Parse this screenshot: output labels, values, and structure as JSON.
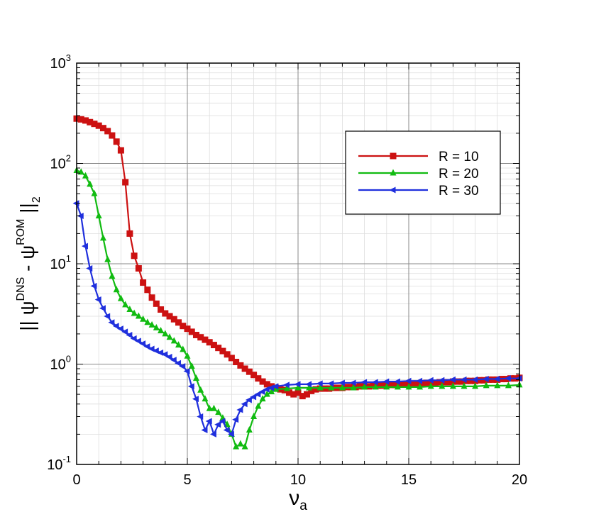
{
  "chart_data": {
    "type": "line",
    "xlabel": "ν",
    "xlabel_sub": "a",
    "ylabel_parts": {
      "open": "|| ψ",
      "sup1": "DNS",
      "mid": " - ψ",
      "sup2": "ROM",
      "close": " ||",
      "sub": "2"
    },
    "x_scale": "linear",
    "y_scale": "log",
    "xlim": [
      0,
      20
    ],
    "ylim": [
      0.1,
      1000
    ],
    "x_ticks": [
      "0",
      "5",
      "10",
      "15",
      "20"
    ],
    "y_ticks": [
      {
        "base": "10",
        "exp": "-1"
      },
      {
        "base": "10",
        "exp": "0"
      },
      {
        "base": "10",
        "exp": "1"
      },
      {
        "base": "10",
        "exp": "2"
      },
      {
        "base": "10",
        "exp": "3"
      }
    ],
    "grid": true,
    "legend_position": "upper-right",
    "series": [
      {
        "name": "R = 10",
        "color": "#cc1111",
        "marker": "square",
        "x": [
          0,
          0.2,
          0.4,
          0.6,
          0.8,
          1.0,
          1.2,
          1.4,
          1.6,
          1.8,
          2.0,
          2.2,
          2.4,
          2.6,
          2.8,
          3.0,
          3.2,
          3.4,
          3.6,
          3.8,
          4.0,
          4.2,
          4.4,
          4.6,
          4.8,
          5.0,
          5.2,
          5.4,
          5.6,
          5.8,
          6.0,
          6.2,
          6.4,
          6.6,
          6.8,
          7.0,
          7.2,
          7.4,
          7.6,
          7.8,
          8.0,
          8.2,
          8.4,
          8.6,
          8.8,
          9.0,
          9.2,
          9.4,
          9.6,
          9.8,
          10.0,
          10.2,
          10.4,
          10.6,
          10.8,
          11.0,
          11.2,
          11.4,
          11.6,
          11.8,
          12.0,
          12.2,
          12.4,
          12.6,
          12.8,
          13.0,
          13.2,
          13.4,
          13.6,
          13.8,
          14.0,
          14.2,
          14.4,
          14.6,
          14.8,
          15.0,
          15.2,
          15.4,
          15.6,
          15.8,
          16.0,
          16.2,
          16.4,
          16.6,
          16.8,
          17.0,
          17.2,
          17.4,
          17.6,
          17.8,
          18.0,
          18.2,
          18.4,
          18.6,
          18.8,
          19.0,
          19.2,
          19.4,
          19.6,
          19.8,
          20.0
        ],
        "y": [
          280,
          275,
          268,
          258,
          248,
          238,
          225,
          210,
          190,
          165,
          135,
          65,
          20,
          12,
          9,
          6.5,
          5.5,
          4.6,
          4.0,
          3.5,
          3.2,
          3.0,
          2.8,
          2.6,
          2.4,
          2.25,
          2.1,
          1.95,
          1.85,
          1.75,
          1.65,
          1.55,
          1.45,
          1.35,
          1.25,
          1.15,
          1.05,
          0.97,
          0.9,
          0.84,
          0.78,
          0.72,
          0.67,
          0.63,
          0.6,
          0.58,
          0.56,
          0.55,
          0.52,
          0.5,
          0.52,
          0.48,
          0.5,
          0.54,
          0.56,
          0.57,
          0.57,
          0.57,
          0.58,
          0.58,
          0.58,
          0.59,
          0.59,
          0.59,
          0.6,
          0.6,
          0.6,
          0.61,
          0.61,
          0.61,
          0.62,
          0.62,
          0.62,
          0.63,
          0.63,
          0.63,
          0.64,
          0.64,
          0.64,
          0.65,
          0.65,
          0.65,
          0.66,
          0.66,
          0.66,
          0.67,
          0.67,
          0.67,
          0.68,
          0.68,
          0.68,
          0.69,
          0.69,
          0.7,
          0.7,
          0.7,
          0.71,
          0.71,
          0.72,
          0.72,
          0.73
        ]
      },
      {
        "name": "R = 20",
        "color": "#11bb11",
        "marker": "triangle-up",
        "x": [
          0,
          0.2,
          0.4,
          0.6,
          0.8,
          1.0,
          1.2,
          1.4,
          1.6,
          1.8,
          2.0,
          2.2,
          2.4,
          2.6,
          2.8,
          3.0,
          3.2,
          3.4,
          3.6,
          3.8,
          4.0,
          4.2,
          4.4,
          4.6,
          4.8,
          5.0,
          5.2,
          5.4,
          5.6,
          5.8,
          6.0,
          6.2,
          6.4,
          6.6,
          6.8,
          7.0,
          7.2,
          7.4,
          7.6,
          7.8,
          8.0,
          8.2,
          8.4,
          8.6,
          8.8,
          9.0,
          9.5,
          10,
          10.5,
          11,
          11.5,
          12,
          12.5,
          13,
          13.5,
          14,
          14.5,
          15,
          15.5,
          16,
          16.5,
          17,
          17.5,
          18,
          18.5,
          19,
          19.5,
          20
        ],
        "y": [
          85,
          82,
          75,
          62,
          50,
          30,
          18,
          11,
          7.5,
          5.5,
          4.5,
          3.9,
          3.5,
          3.2,
          3.0,
          2.8,
          2.6,
          2.45,
          2.3,
          2.15,
          2.0,
          1.85,
          1.7,
          1.55,
          1.4,
          1.2,
          0.95,
          0.72,
          0.55,
          0.45,
          0.36,
          0.36,
          0.33,
          0.29,
          0.25,
          0.2,
          0.15,
          0.16,
          0.15,
          0.22,
          0.3,
          0.38,
          0.45,
          0.5,
          0.53,
          0.56,
          0.57,
          0.58,
          0.58,
          0.58,
          0.58,
          0.58,
          0.58,
          0.59,
          0.59,
          0.59,
          0.59,
          0.59,
          0.59,
          0.6,
          0.6,
          0.6,
          0.6,
          0.6,
          0.61,
          0.61,
          0.61,
          0.62
        ]
      },
      {
        "name": "R = 30",
        "color": "#1f2fdd",
        "marker": "triangle-left",
        "x": [
          0,
          0.2,
          0.4,
          0.6,
          0.8,
          1.0,
          1.2,
          1.4,
          1.6,
          1.8,
          2.0,
          2.2,
          2.4,
          2.6,
          2.8,
          3.0,
          3.2,
          3.4,
          3.6,
          3.8,
          4.0,
          4.2,
          4.4,
          4.6,
          4.8,
          5.0,
          5.2,
          5.4,
          5.6,
          5.8,
          6.0,
          6.2,
          6.4,
          6.6,
          6.8,
          7.0,
          7.2,
          7.4,
          7.6,
          7.8,
          8.0,
          8.2,
          8.4,
          8.6,
          8.8,
          9.0,
          9.5,
          10,
          10.5,
          11,
          11.5,
          12,
          12.5,
          13,
          13.5,
          14,
          14.5,
          15,
          15.5,
          16,
          16.5,
          17,
          17.5,
          18,
          18.5,
          19,
          19.5,
          20
        ],
        "y": [
          40,
          30,
          15,
          9,
          6,
          4.4,
          3.6,
          3.0,
          2.6,
          2.4,
          2.25,
          2.1,
          1.95,
          1.8,
          1.7,
          1.6,
          1.5,
          1.42,
          1.36,
          1.3,
          1.25,
          1.18,
          1.1,
          1.02,
          0.95,
          0.85,
          0.6,
          0.45,
          0.3,
          0.22,
          0.27,
          0.2,
          0.25,
          0.27,
          0.22,
          0.2,
          0.28,
          0.35,
          0.4,
          0.44,
          0.47,
          0.5,
          0.53,
          0.56,
          0.58,
          0.6,
          0.62,
          0.63,
          0.63,
          0.64,
          0.64,
          0.65,
          0.65,
          0.66,
          0.66,
          0.67,
          0.67,
          0.68,
          0.68,
          0.69,
          0.69,
          0.7,
          0.7,
          0.7,
          0.71,
          0.71,
          0.72,
          0.72
        ]
      }
    ]
  }
}
